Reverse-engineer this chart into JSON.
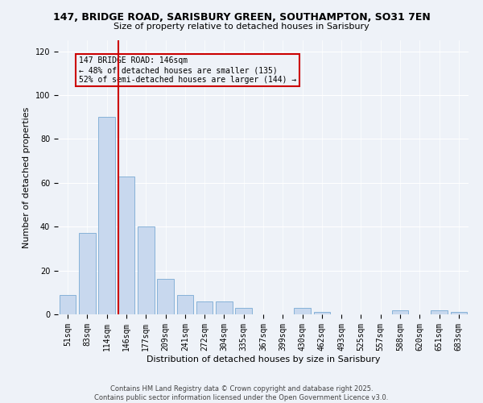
{
  "title_line1": "147, BRIDGE ROAD, SARISBURY GREEN, SOUTHAMPTON, SO31 7EN",
  "title_line2": "Size of property relative to detached houses in Sarisbury",
  "xlabel": "Distribution of detached houses by size in Sarisbury",
  "ylabel": "Number of detached properties",
  "categories": [
    "51sqm",
    "83sqm",
    "114sqm",
    "146sqm",
    "177sqm",
    "209sqm",
    "241sqm",
    "272sqm",
    "304sqm",
    "335sqm",
    "367sqm",
    "399sqm",
    "430sqm",
    "462sqm",
    "493sqm",
    "525sqm",
    "557sqm",
    "588sqm",
    "620sqm",
    "651sqm",
    "683sqm"
  ],
  "values": [
    9,
    37,
    90,
    63,
    40,
    16,
    9,
    6,
    6,
    3,
    0,
    0,
    3,
    1,
    0,
    0,
    0,
    2,
    0,
    2,
    1
  ],
  "bar_color": "#c8d8ee",
  "bar_edge_color": "#7aaad4",
  "vline_color": "#cc0000",
  "annotation_title": "147 BRIDGE ROAD: 146sqm",
  "annotation_line1": "← 48% of detached houses are smaller (135)",
  "annotation_line2": "52% of semi-detached houses are larger (144) →",
  "annotation_box_color": "#cc0000",
  "ylim": [
    0,
    125
  ],
  "yticks": [
    0,
    20,
    40,
    60,
    80,
    100,
    120
  ],
  "footer_line1": "Contains HM Land Registry data © Crown copyright and database right 2025.",
  "footer_line2": "Contains public sector information licensed under the Open Government Licence v3.0.",
  "background_color": "#eef2f8",
  "title_fontsize": 9,
  "subtitle_fontsize": 8,
  "ylabel_fontsize": 8,
  "xlabel_fontsize": 8,
  "tick_fontsize": 7,
  "footer_fontsize": 6,
  "ann_fontsize": 7
}
